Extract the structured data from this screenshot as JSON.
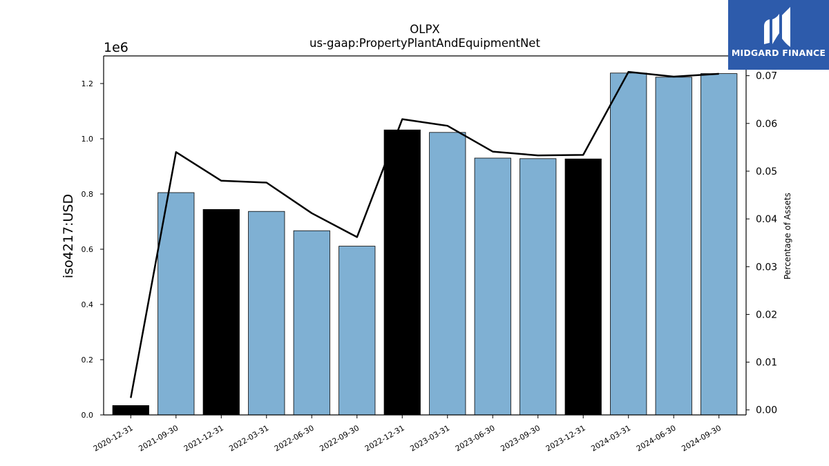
{
  "chart_data": {
    "type": "bar",
    "title": "OLPX",
    "subtitle": "us-gaap:PropertyPlantAndEquipmentNet",
    "ylabel": "iso4217:USD",
    "y_scale_label": "1e6",
    "y2label": "Percentage of Assets",
    "categories": [
      "2020-12-31",
      "2021-09-30",
      "2021-12-31",
      "2022-03-31",
      "2022-06-30",
      "2022-09-30",
      "2022-12-31",
      "2023-03-31",
      "2023-06-30",
      "2023-09-30",
      "2023-12-31",
      "2024-03-31",
      "2024-06-30",
      "2024-09-30"
    ],
    "values": [
      34000,
      805000,
      744000,
      737000,
      667000,
      611000,
      1032000,
      1023000,
      930000,
      928000,
      927000,
      1238000,
      1223000,
      1236000
    ],
    "bar_colors": [
      "#000000",
      "#7fb0d3",
      "#000000",
      "#7fb0d3",
      "#7fb0d3",
      "#7fb0d3",
      "#000000",
      "#7fb0d3",
      "#7fb0d3",
      "#7fb0d3",
      "#000000",
      "#7fb0d3",
      "#7fb0d3",
      "#7fb0d3"
    ],
    "line_values": [
      0.0025,
      0.054,
      0.048,
      0.0476,
      0.0412,
      0.0362,
      0.0609,
      0.0595,
      0.0541,
      0.0533,
      0.0534,
      0.0708,
      0.0698,
      0.0704
    ],
    "ylim": [
      0,
      1300000
    ],
    "y2lim": [
      -0.00105,
      0.07414
    ],
    "yticks": [
      0,
      200000,
      400000,
      600000,
      800000,
      1000000,
      1200000
    ],
    "ytick_labels": [
      "0.0",
      "0.2",
      "0.4",
      "0.6",
      "0.8",
      "1.0",
      "1.2"
    ],
    "y2ticks": [
      0,
      0.01,
      0.02,
      0.03,
      0.04,
      0.05,
      0.06,
      0.07
    ],
    "y2tick_labels": [
      "0.00",
      "0.01",
      "0.02",
      "0.03",
      "0.04",
      "0.05",
      "0.06",
      "0.07"
    ],
    "grid": false,
    "colors": {
      "bar_blue": "#7fb0d3",
      "bar_black": "#000000",
      "line": "#000000"
    }
  },
  "logo": {
    "text": "MIDGARD FINANCE",
    "background": "#2d5bab"
  }
}
